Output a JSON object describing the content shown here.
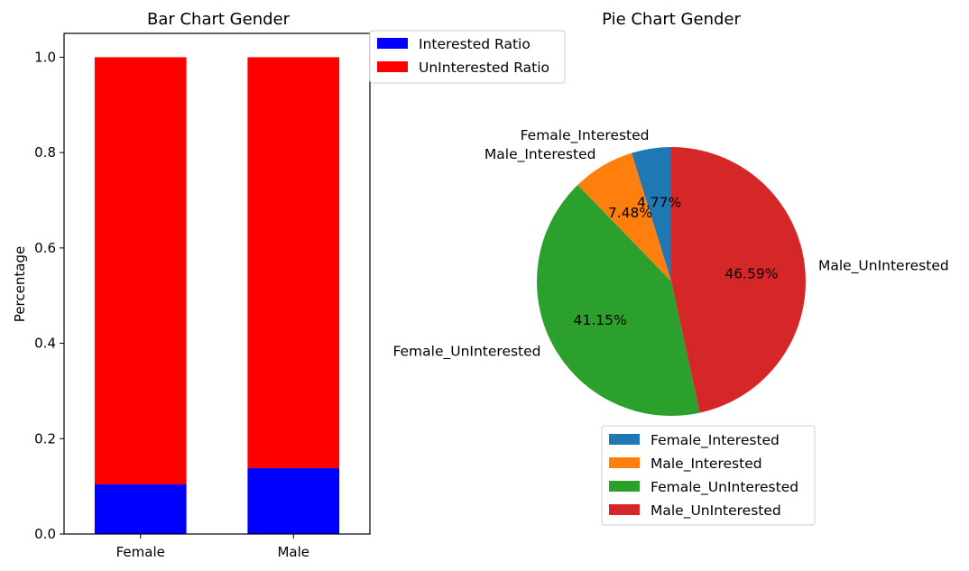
{
  "chart_data": [
    {
      "type": "bar",
      "stacked": true,
      "title": "Bar Chart Gender",
      "xlabel": "",
      "ylabel": "Percentage",
      "categories": [
        "Female",
        "Male"
      ],
      "ylim": [
        0,
        1.05
      ],
      "yticks": [
        "0.0",
        "0.2",
        "0.4",
        "0.6",
        "0.8",
        "1.0"
      ],
      "series": [
        {
          "name": "Interested Ratio",
          "values": [
            0.104,
            0.138
          ],
          "color": "#0000ff"
        },
        {
          "name": "UnInterested Ratio",
          "values": [
            0.896,
            0.862
          ],
          "color": "#ff0000"
        }
      ],
      "legend": "upper-left-outside"
    },
    {
      "type": "pie",
      "title": "Pie Chart Gender",
      "startangle": 90,
      "slices": [
        {
          "label": "Female_Interested",
          "value": 4.77,
          "pct_label": "4.77%",
          "color": "#1f77b4"
        },
        {
          "label": "Male_Interested",
          "value": 7.48,
          "pct_label": "7.48%",
          "color": "#ff7f0e"
        },
        {
          "label": "Female_UnInterested",
          "value": 41.15,
          "pct_label": "41.15%",
          "color": "#2ca02c"
        },
        {
          "label": "Male_UnInterested",
          "value": 46.59,
          "pct_label": "46.59%",
          "color": "#d62728"
        }
      ],
      "legend": "below"
    }
  ]
}
